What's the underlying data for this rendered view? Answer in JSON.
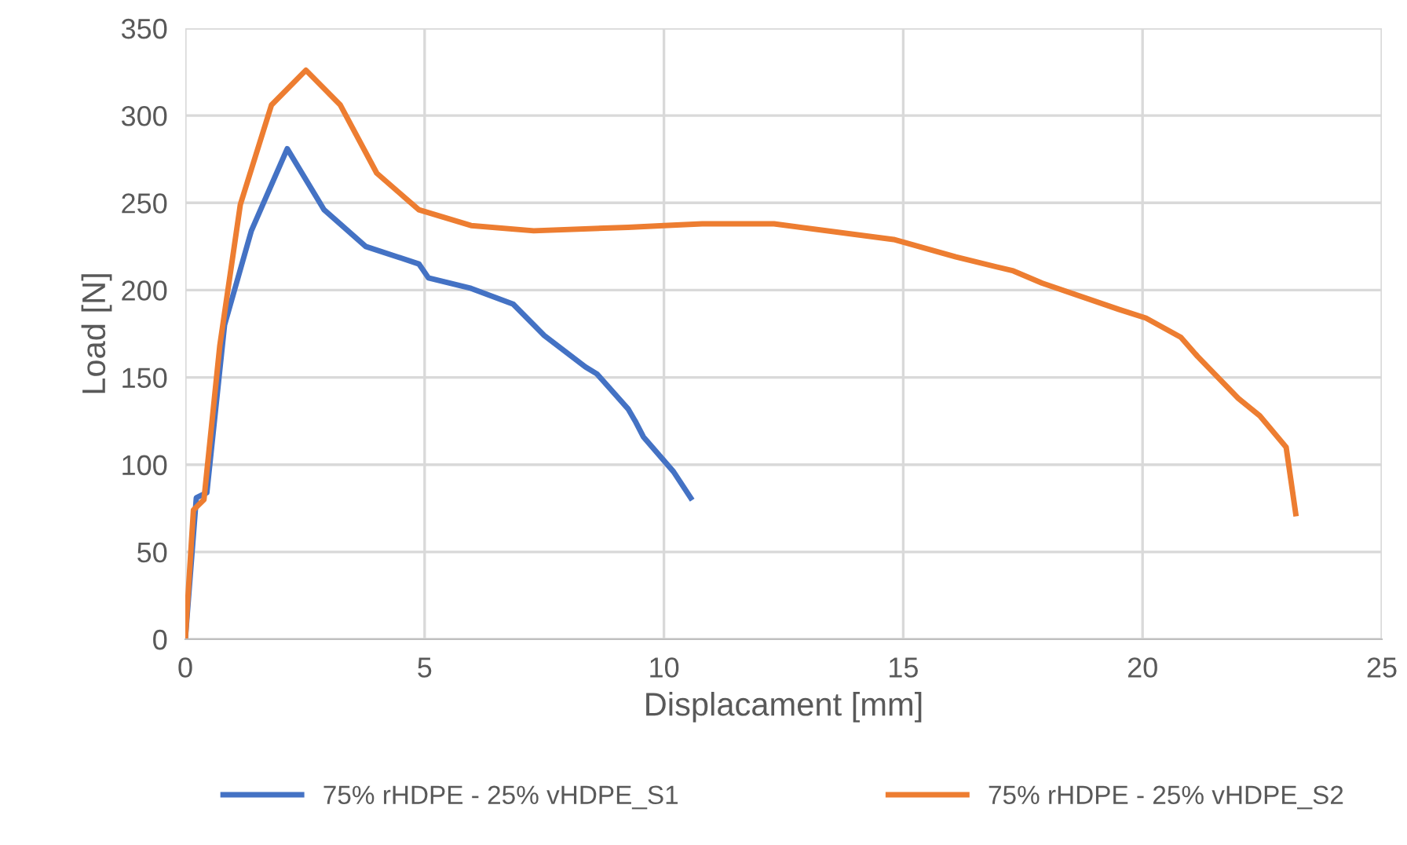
{
  "chart_data": {
    "type": "line",
    "xlabel": "Displacament [mm]",
    "ylabel": "Load [N]",
    "xlim": [
      0,
      25
    ],
    "xticks": [
      0,
      5,
      10,
      15,
      20,
      25
    ],
    "ylim": [
      0,
      350
    ],
    "yticks": [
      0,
      50,
      100,
      150,
      200,
      250,
      300,
      350
    ],
    "grid": true,
    "legend": "bottom",
    "marker": "none",
    "line_style": "solid",
    "series": [
      {
        "name": "75% rHDPE - 25% vHDPE_S1",
        "color": "#4472c4",
        "x": [
          0,
          0.23,
          0.45,
          0.82,
          1.38,
          2.13,
          2.9,
          3.77,
          4.88,
          5.08,
          5.97,
          6.85,
          7.5,
          8.36,
          8.6,
          9.25,
          9.4,
          9.57,
          10.2,
          10.56
        ],
        "values": [
          0,
          81,
          84,
          180,
          234,
          281,
          246,
          225,
          215,
          207,
          201,
          192,
          174,
          156,
          152,
          132,
          125,
          116,
          96,
          81
        ]
      },
      {
        "name": "75% rHDPE - 25% vHDPE_S2",
        "color": "#ed7d31",
        "x": [
          0,
          0.17,
          0.39,
          0.72,
          1.15,
          1.8,
          2.52,
          3.24,
          4.0,
          4.88,
          5.97,
          7.28,
          9.25,
          10.0,
          10.8,
          12.3,
          14.8,
          16.1,
          17.3,
          17.9,
          19.5,
          20.07,
          20.8,
          21.15,
          22.0,
          22.45,
          23.0,
          23.2
        ],
        "values": [
          0,
          74,
          80,
          168,
          249,
          306,
          326,
          306,
          267,
          246,
          237,
          234,
          236,
          237,
          238,
          238,
          229,
          219,
          211,
          204,
          189,
          184,
          173,
          162,
          138,
          128,
          110,
          72
        ]
      }
    ]
  }
}
